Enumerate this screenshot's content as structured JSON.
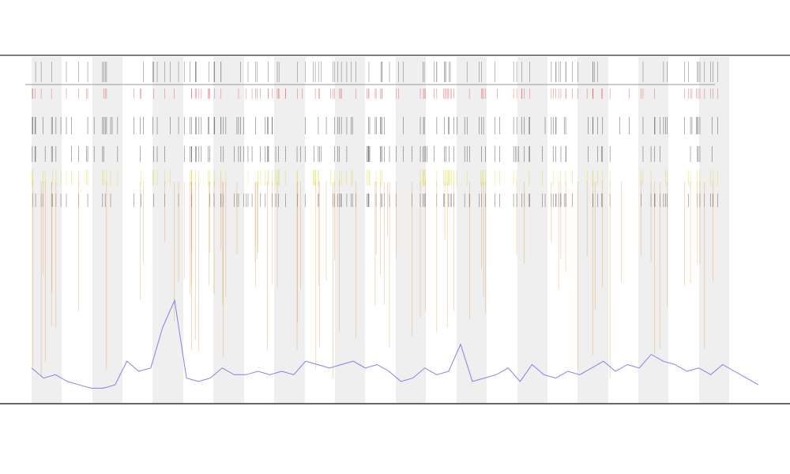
{
  "chart_data": {
    "type": "line",
    "color": "#6f6fe0",
    "values": [
      8,
      5,
      6,
      4,
      3,
      2,
      2,
      3,
      10,
      7,
      8,
      20,
      28,
      5,
      4,
      5,
      8,
      6,
      6,
      7,
      6,
      7,
      6,
      10,
      9,
      8,
      9,
      10,
      8,
      9,
      7,
      4,
      5,
      8,
      6,
      7,
      15,
      4,
      5,
      6,
      8,
      4,
      9,
      6,
      5,
      7,
      6,
      8,
      10,
      7,
      9,
      8,
      12,
      10,
      9,
      7,
      8,
      6,
      9,
      7,
      5,
      3
    ],
    "ylim": [
      0,
      100
    ]
  }
}
